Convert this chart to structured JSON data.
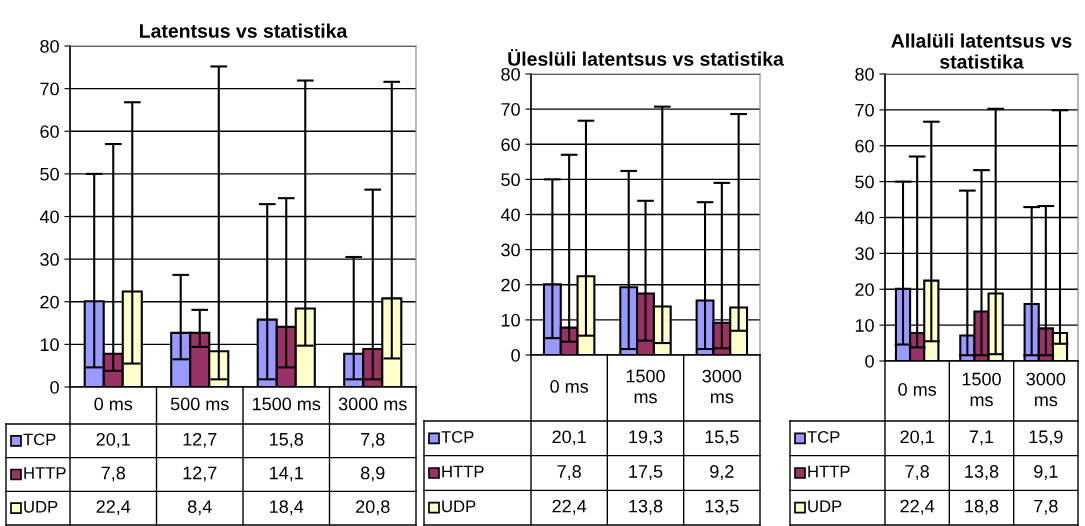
{
  "chart_data": [
    {
      "type": "bar",
      "title": "Latentsus vs statistika",
      "categories": [
        "0 ms",
        "500 ms",
        "1500 ms",
        "3000 ms"
      ],
      "ylim": [
        0,
        80
      ],
      "yticks": [
        0,
        10,
        20,
        30,
        40,
        50,
        60,
        70,
        80
      ],
      "grid": "y",
      "legend": "bottom",
      "series": [
        {
          "name": "TCP",
          "color": "#9999ff",
          "values": [
            20.1,
            12.7,
            15.8,
            7.8
          ],
          "value_labels": [
            "20,1",
            "12,7",
            "15,8",
            "7,8"
          ],
          "errors": [
            [
              4.6,
              50
            ],
            [
              6.5,
              26.3
            ],
            [
              1.8,
              42.9
            ],
            [
              1.8,
              30.5
            ]
          ]
        },
        {
          "name": "HTTP",
          "color": "#993366",
          "values": [
            7.8,
            12.7,
            14.1,
            8.9
          ],
          "value_labels": [
            "7,8",
            "12,7",
            "14,1",
            "8,9"
          ],
          "errors": [
            [
              3.8,
              57
            ],
            [
              9.4,
              18.1
            ],
            [
              4.6,
              44.3
            ],
            [
              1.8,
              46.3
            ]
          ]
        },
        {
          "name": "UDP",
          "color": "#ffffcc",
          "values": [
            22.4,
            8.4,
            18.4,
            20.8
          ],
          "value_labels": [
            "22,4",
            "8,4",
            "18,4",
            "20,8"
          ],
          "errors": [
            [
              5.5,
              66.8
            ],
            [
              1.8,
              75.2
            ],
            [
              9.7,
              71.9
            ],
            [
              6.7,
              71.6
            ]
          ]
        }
      ]
    },
    {
      "type": "bar",
      "title": "Üleslüli latentsus vs statistika",
      "categories": [
        "0 ms",
        "1500 ms",
        "3000 ms"
      ],
      "ylim": [
        0,
        80
      ],
      "yticks": [
        0,
        10,
        20,
        30,
        40,
        50,
        60,
        70,
        80
      ],
      "grid": "y",
      "legend": "bottom",
      "series": [
        {
          "name": "TCP",
          "color": "#9999ff",
          "values": [
            20.1,
            19.3,
            15.5
          ],
          "value_labels": [
            "20,1",
            "19,3",
            "15,5"
          ],
          "errors": [
            [
              4.8,
              50
            ],
            [
              1.7,
              52.4
            ],
            [
              1.7,
              43.5
            ]
          ]
        },
        {
          "name": "HTTP",
          "color": "#993366",
          "values": [
            7.8,
            17.5,
            9.2
          ],
          "value_labels": [
            "7,8",
            "17,5",
            "9,2"
          ],
          "errors": [
            [
              3.8,
              57
            ],
            [
              4.1,
              43.9
            ],
            [
              1.9,
              49
            ]
          ]
        },
        {
          "name": "UDP",
          "color": "#ffffcc",
          "values": [
            22.4,
            13.8,
            13.5
          ],
          "value_labels": [
            "22,4",
            "13,8",
            "13,5"
          ],
          "errors": [
            [
              5.5,
              66.7
            ],
            [
              3.4,
              70.7
            ],
            [
              6.9,
              68.6
            ]
          ]
        }
      ]
    },
    {
      "type": "bar",
      "title": "Allalüli latentsus vs statistika",
      "categories": [
        "0 ms",
        "1500 ms",
        "3000 ms"
      ],
      "ylim": [
        0,
        80
      ],
      "yticks": [
        0,
        10,
        20,
        30,
        40,
        50,
        60,
        70,
        80
      ],
      "grid": "y",
      "legend": "bottom",
      "series": [
        {
          "name": "TCP",
          "color": "#9999ff",
          "values": [
            20.1,
            7.1,
            15.9
          ],
          "value_labels": [
            "20,1",
            "7,1",
            "15,9"
          ],
          "errors": [
            [
              4.6,
              50
            ],
            [
              1.6,
              47.5
            ],
            [
              1.6,
              42.9
            ]
          ]
        },
        {
          "name": "HTTP",
          "color": "#993366",
          "values": [
            7.8,
            13.8,
            9.1
          ],
          "value_labels": [
            "7,8",
            "13,8",
            "9,1"
          ],
          "errors": [
            [
              3.8,
              57
            ],
            [
              1.6,
              53.2
            ],
            [
              1.6,
              43.2
            ]
          ]
        },
        {
          "name": "UDP",
          "color": "#ffffcc",
          "values": [
            22.4,
            18.8,
            7.8
          ],
          "value_labels": [
            "22,4",
            "18,8",
            "7,8"
          ],
          "errors": [
            [
              5.5,
              66.7
            ],
            [
              1.9,
              70.3
            ],
            [
              4.8,
              69.9
            ]
          ]
        }
      ]
    }
  ]
}
